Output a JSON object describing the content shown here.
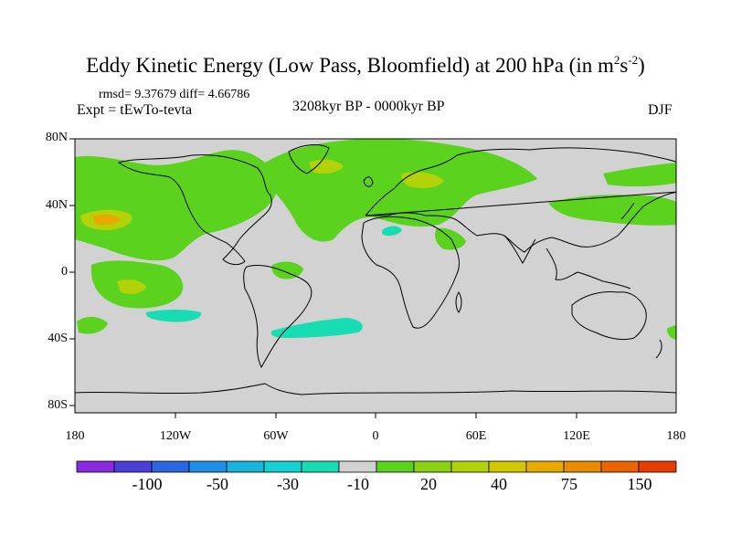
{
  "title_main": "Eddy Kinetic Energy (Low Pass, Bloomfield) at 200 hPa (in m",
  "title_sup1": "2",
  "title_mid": "s",
  "title_sup2": "-2",
  "title_end": ")",
  "stats": "rmsd= 9.37679 diff= 4.66786",
  "experiment": "Expt = tEwTo-tevta",
  "period": "3208kyr BP - 0000kyr BP",
  "season": "DJF",
  "lat_labels": [
    "80N",
    "40N",
    "0",
    "40S",
    "80S"
  ],
  "lon_labels": [
    "180",
    "120W",
    "60W",
    "0",
    "60E",
    "120E",
    "180"
  ],
  "colorbar": {
    "labels": [
      "-100",
      "-50",
      "-30",
      "-10",
      "20",
      "40",
      "75",
      "150"
    ],
    "colors": [
      "#8a2be2",
      "#4b3fd9",
      "#2a66e0",
      "#1e90e8",
      "#18b4dc",
      "#14d2d2",
      "#18dcb4",
      "#d2d2d2",
      "#5ad21e",
      "#8cd214",
      "#b4d20a",
      "#d2c800",
      "#e6aa00",
      "#eb8c00",
      "#eb6400",
      "#e63c00"
    ]
  },
  "chart_data": {
    "type": "filled-contour-map",
    "field": "Eddy kinetic energy difference, low pass, 200 hPa",
    "units": "m2 s-2",
    "lon_range": [
      -180,
      180
    ],
    "lat_range": [
      -90,
      90
    ],
    "levels": [
      -150,
      -100,
      -75,
      -50,
      -40,
      -30,
      -20,
      -10,
      10,
      20,
      30,
      40,
      50,
      75,
      100,
      150
    ],
    "regions": [
      {
        "name": "north-pacific-green",
        "lon": [
          -180,
          -60
        ],
        "lat": [
          15,
          60
        ],
        "sign": "positive",
        "approx_value": 20
      },
      {
        "name": "north-pacific-max",
        "lon": [
          -170,
          -140
        ],
        "lat": [
          27,
          33
        ],
        "sign": "positive",
        "approx_value": 75
      },
      {
        "name": "north-atlantic-europe",
        "lon": [
          -60,
          90
        ],
        "lat": [
          35,
          75
        ],
        "sign": "positive",
        "approx_value": 20
      },
      {
        "name": "western-pacific-jet",
        "lon": [
          100,
          180
        ],
        "lat": [
          25,
          45
        ],
        "sign": "positive",
        "approx_value": 20
      },
      {
        "name": "tropical-east-pacific",
        "lon": [
          -175,
          -115
        ],
        "lat": [
          -30,
          5
        ],
        "sign": "positive",
        "approx_value": 20
      },
      {
        "name": "south-pacific-negative",
        "lon": [
          -140,
          -95
        ],
        "lat": [
          -33,
          -28
        ],
        "sign": "negative",
        "approx_value": -10
      },
      {
        "name": "south-atlantic-negative",
        "lon": [
          -60,
          0
        ],
        "lat": [
          -42,
          -32
        ],
        "sign": "negative",
        "approx_value": -10
      },
      {
        "name": "sahara-negative",
        "lon": [
          0,
          18
        ],
        "lat": [
          28,
          32
        ],
        "sign": "negative",
        "approx_value": -10
      }
    ]
  }
}
